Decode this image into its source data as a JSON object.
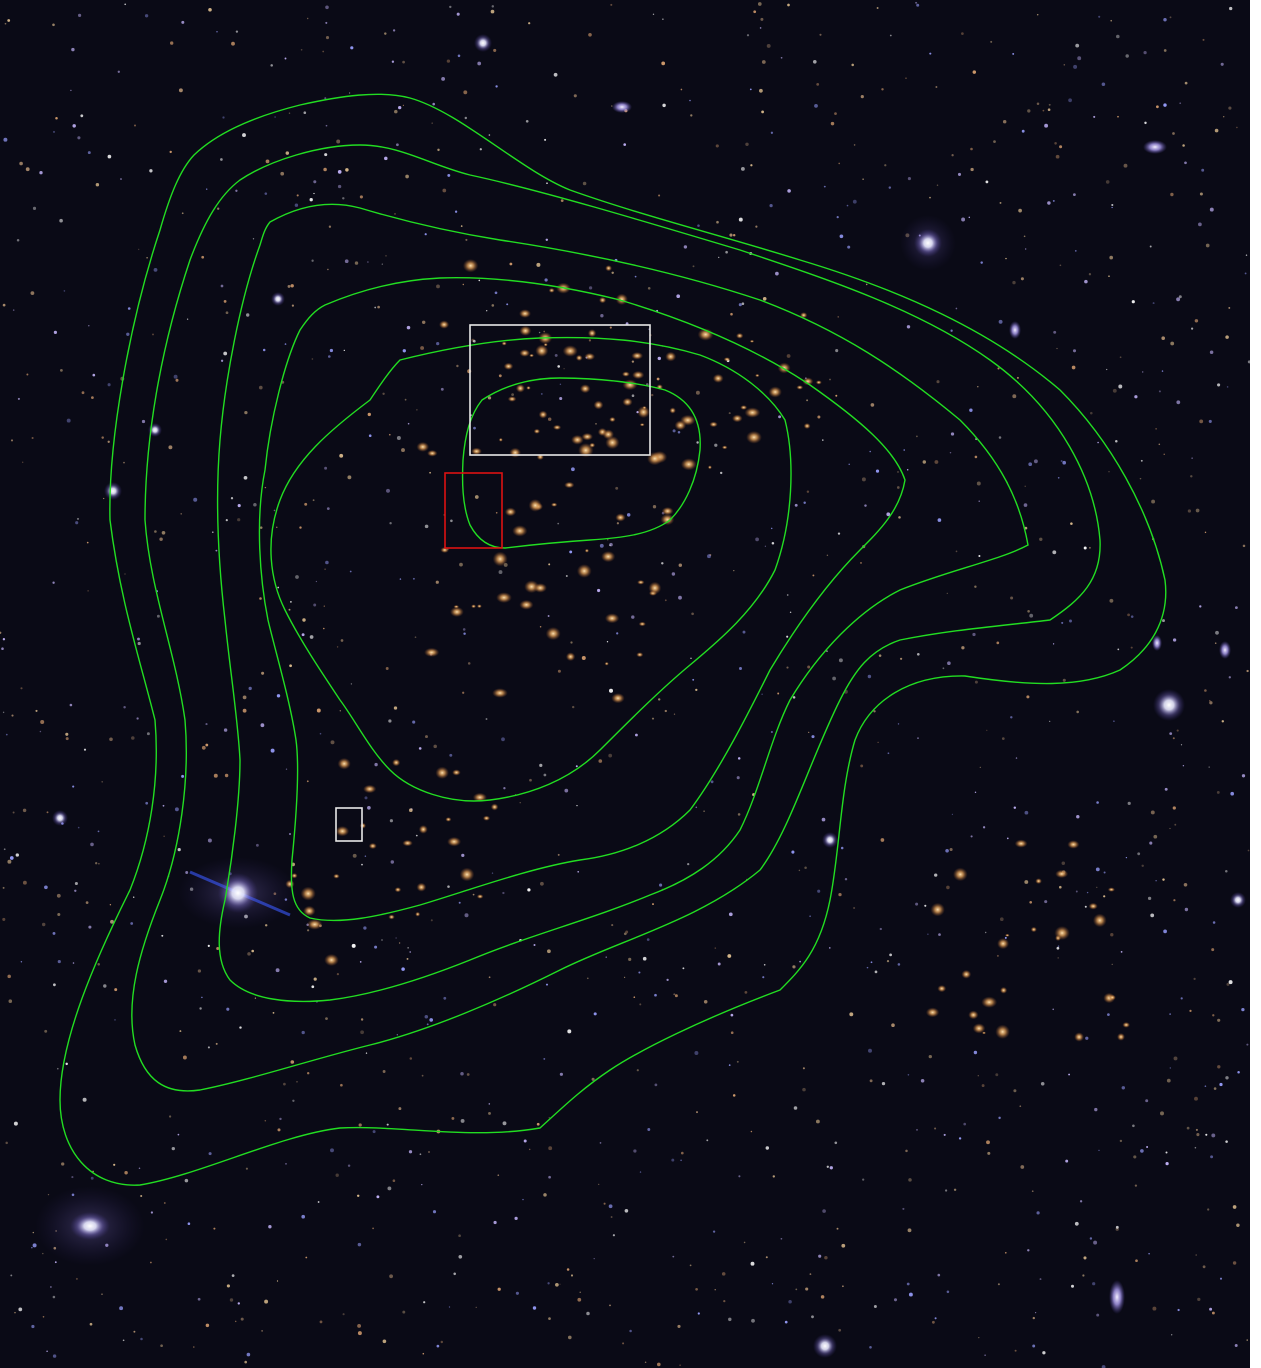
{
  "image": {
    "subject": "deep-field-galaxy-cluster",
    "colors": {
      "sky": "#0a0a16",
      "contour": "#22dd22",
      "white_box": "#e8e8e8",
      "red_box": "#dd1111",
      "cluster_galaxy": "#d99a55",
      "field_galaxy": "#b8a8ff",
      "star": "#ffffff"
    }
  },
  "overlays": {
    "contours": [
      "contour-level-1",
      "contour-level-2",
      "contour-level-3",
      "contour-level-4",
      "contour-level-5",
      "contour-level-6"
    ],
    "boxes": [
      "white-box-large",
      "red-box",
      "white-box-small"
    ]
  }
}
